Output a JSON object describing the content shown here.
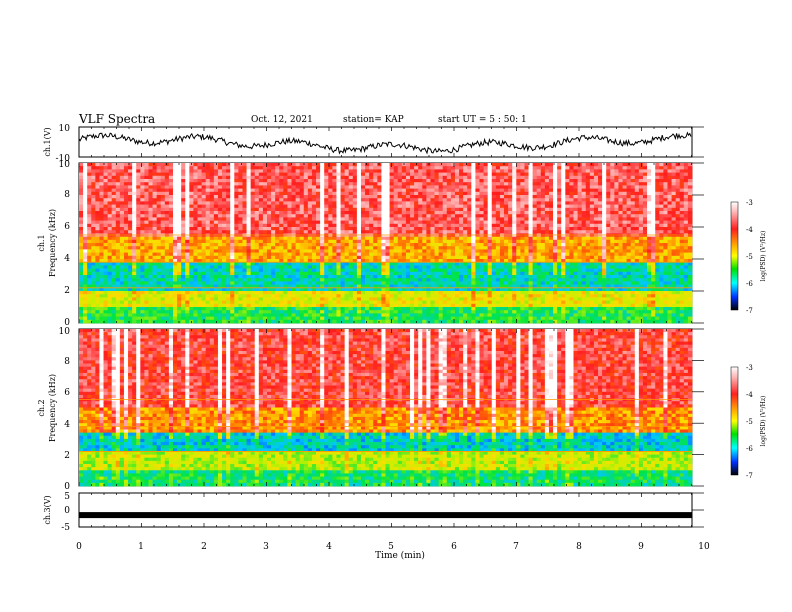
{
  "header": {
    "title": "VLF Spectra",
    "date": "Oct. 12, 2021",
    "station": "station= KAP",
    "start": "start  UT =   5 : 50: 1"
  },
  "chart_data": [
    {
      "type": "line",
      "panel": "ch1-waveform",
      "ylabel": "ch.1(V)",
      "ylim": [
        -10,
        10
      ],
      "yticks": [
        "10",
        "-10"
      ],
      "xlim": [
        0,
        10
      ],
      "series": [
        {
          "color": "#000000"
        }
      ]
    },
    {
      "type": "heatmap",
      "panel": "ch1-spectrogram",
      "ylabel": "ch.1\nFrequency (kHz)",
      "ylim": [
        0,
        10
      ],
      "yticks": [
        "0",
        "2",
        "4",
        "6",
        "8",
        "10"
      ],
      "xlim": [
        0,
        10
      ],
      "colorbar": {
        "label": "log(PSD) (V²/Hz)",
        "range": [
          -7,
          -3
        ],
        "ticks": [
          "-3",
          "-4",
          "-5",
          "-6",
          "-7"
        ]
      },
      "approx_bands": [
        {
          "freq_khz": [
            0,
            1
          ],
          "log_psd": -5.5
        },
        {
          "freq_khz": [
            1,
            2
          ],
          "log_psd": -4.8
        },
        {
          "freq_khz": [
            2,
            3.8
          ],
          "log_psd": -5.8
        },
        {
          "freq_khz": [
            3.8,
            5.5
          ],
          "log_psd": -4.4
        },
        {
          "freq_khz": [
            5.5,
            10
          ],
          "log_psd": -3.6
        }
      ]
    },
    {
      "type": "heatmap",
      "panel": "ch2-spectrogram",
      "ylabel": "ch.2\nFrequency (kHz)",
      "ylim": [
        0,
        10
      ],
      "yticks": [
        "0",
        "2",
        "4",
        "6",
        "8",
        "10"
      ],
      "xlim": [
        0,
        10
      ],
      "colorbar": {
        "label": "log(PSD) (V²/Hz)",
        "range": [
          -7,
          -3
        ],
        "ticks": [
          "-3",
          "-4",
          "-5",
          "-6",
          "-7"
        ]
      },
      "approx_bands": [
        {
          "freq_khz": [
            0,
            1
          ],
          "log_psd": -5.6
        },
        {
          "freq_khz": [
            1,
            2.2
          ],
          "log_psd": -5.0
        },
        {
          "freq_khz": [
            2.2,
            3.4
          ],
          "log_psd": -5.9
        },
        {
          "freq_khz": [
            3.4,
            5.0
          ],
          "log_psd": -4.3
        },
        {
          "freq_khz": [
            5.0,
            10
          ],
          "log_psd": -3.7
        }
      ]
    },
    {
      "type": "line",
      "panel": "ch3-waveform",
      "ylabel": "ch.3(V)",
      "ylim": [
        -5,
        5
      ],
      "yticks": [
        "5",
        "0",
        "-5"
      ],
      "xlim": [
        0,
        10
      ],
      "xlabel": "Time (min)",
      "xticks": [
        "0",
        "1",
        "2",
        "3",
        "4",
        "5",
        "6",
        "7",
        "8",
        "9",
        "10"
      ],
      "series": [
        {
          "color": "#000000",
          "approx_level": -1.5
        }
      ]
    }
  ]
}
